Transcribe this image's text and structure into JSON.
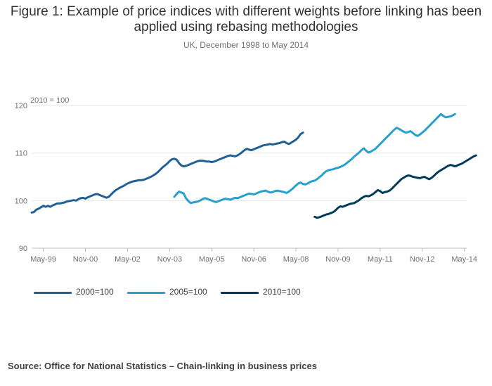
{
  "title": "Figure 1: Example of price indices with different weights before linking has been applied using rebasing methodologies",
  "subtitle": "UK, December 1998 to May 2014",
  "source": "Source: Office for National Statistics – Chain-linking in business prices",
  "colors": {
    "s2000": "#206095",
    "s2005": "#27A0CC",
    "s2010": "#003C57",
    "grid": "#e6e6e6",
    "axis": "#bdbdbd"
  },
  "chart_data": {
    "type": "line",
    "title": "Figure 1: Example of price indices with different weights before linking has been applied using rebasing methodologies",
    "subtitle": "UK, December 1998 to May 2014",
    "ylabel": "2010 = 100",
    "xlabel": "",
    "ylim": [
      90,
      120
    ],
    "xlim": [
      "Dec-98",
      "Jun-14"
    ],
    "yticks": [
      90,
      100,
      110,
      120
    ],
    "xticks": [
      "May-99",
      "Nov-00",
      "May-02",
      "Nov-03",
      "May-05",
      "Nov-06",
      "May-08",
      "Nov-09",
      "May-11",
      "Nov-12",
      "May-14"
    ],
    "legend_position": "bottom",
    "series": [
      {
        "name": "2000=100",
        "start": "Dec-98",
        "values": [
          97.5,
          97.6,
          98.1,
          98.3,
          98.6,
          98.9,
          98.7,
          98.9,
          98.7,
          99.0,
          99.2,
          99.4,
          99.4,
          99.5,
          99.6,
          99.8,
          99.9,
          100.0,
          100.1,
          100.0,
          100.3,
          100.5,
          100.6,
          100.4,
          100.7,
          100.9,
          101.1,
          101.3,
          101.4,
          101.2,
          101.0,
          100.8,
          100.6,
          100.8,
          101.3,
          101.8,
          102.2,
          102.5,
          102.8,
          103.0,
          103.3,
          103.6,
          103.8,
          104.0,
          104.1,
          104.2,
          104.3,
          104.3,
          104.4,
          104.6,
          104.8,
          105.0,
          105.3,
          105.6,
          106.0,
          106.5,
          107.0,
          107.4,
          107.8,
          108.3,
          108.7,
          108.8,
          108.6,
          107.9,
          107.4,
          107.2,
          107.3,
          107.5,
          107.7,
          107.9,
          108.1,
          108.3,
          108.4,
          108.4,
          108.3,
          108.2,
          108.2,
          108.1,
          108.2,
          108.4,
          108.6,
          108.8,
          109.0,
          109.2,
          109.4,
          109.5,
          109.4,
          109.3,
          109.5,
          109.8,
          110.2,
          110.6,
          110.9,
          110.7,
          110.6,
          110.8,
          111.0,
          111.2,
          111.4,
          111.6,
          111.7,
          111.8,
          111.9,
          111.8,
          111.9,
          112.0,
          112.1,
          112.3,
          112.4,
          112.1,
          111.9,
          112.2,
          112.5,
          112.8,
          113.3,
          114.0,
          114.3
        ]
      },
      {
        "name": "2005=100",
        "start": "Jan-04",
        "values": [
          100.8,
          101.4,
          101.9,
          101.7,
          101.5,
          100.5,
          99.9,
          99.5,
          99.6,
          99.7,
          99.8,
          100.0,
          100.3,
          100.5,
          100.4,
          100.2,
          100.0,
          99.8,
          99.7,
          99.9,
          100.1,
          100.3,
          100.4,
          100.3,
          100.2,
          100.4,
          100.6,
          100.5,
          100.7,
          100.9,
          101.1,
          101.3,
          101.5,
          101.4,
          101.3,
          101.5,
          101.7,
          101.9,
          102.0,
          102.1,
          101.9,
          101.7,
          101.8,
          102.0,
          102.1,
          102.0,
          101.9,
          101.8,
          101.6,
          101.9,
          102.3,
          102.7,
          103.2,
          103.6,
          103.8,
          103.5,
          103.4,
          103.6,
          103.9,
          104.1,
          104.2,
          104.5,
          104.9,
          105.3,
          105.8,
          106.2,
          106.4,
          106.5,
          106.6,
          106.8,
          106.9,
          107.1,
          107.3,
          107.6,
          108.0,
          108.4,
          108.8,
          109.3,
          109.7,
          110.1,
          110.6,
          111.0,
          110.5,
          110.1,
          110.3,
          110.6,
          110.9,
          111.4,
          111.9,
          112.4,
          112.9,
          113.4,
          113.9,
          114.4,
          114.9,
          115.3,
          115.1,
          114.8,
          114.5,
          114.3,
          114.4,
          114.6,
          114.2,
          113.8,
          113.6,
          113.9,
          114.3,
          114.7,
          115.2,
          115.7,
          116.2,
          116.7,
          117.2,
          117.7,
          118.2,
          117.8,
          117.5,
          117.6,
          117.7,
          117.9,
          118.2
        ]
      },
      {
        "name": "2010=100",
        "start": "Jan-09",
        "values": [
          96.6,
          96.4,
          96.5,
          96.7,
          96.9,
          97.1,
          97.2,
          97.4,
          97.6,
          98.0,
          98.5,
          98.8,
          98.7,
          98.9,
          99.1,
          99.3,
          99.4,
          99.5,
          99.8,
          100.1,
          100.5,
          100.8,
          101.0,
          100.9,
          101.1,
          101.4,
          101.8,
          102.2,
          102.0,
          101.6,
          101.8,
          101.9,
          102.1,
          102.5,
          103.0,
          103.5,
          104.0,
          104.5,
          104.8,
          105.1,
          105.3,
          105.2,
          105.0,
          104.9,
          104.8,
          104.7,
          104.9,
          105.0,
          104.7,
          104.5,
          104.8,
          105.2,
          105.7,
          106.1,
          106.4,
          106.7,
          107.0,
          107.3,
          107.5,
          107.4,
          107.2,
          107.4,
          107.6,
          107.8,
          108.1,
          108.4,
          108.7,
          109.0,
          109.3,
          109.5
        ]
      }
    ]
  }
}
